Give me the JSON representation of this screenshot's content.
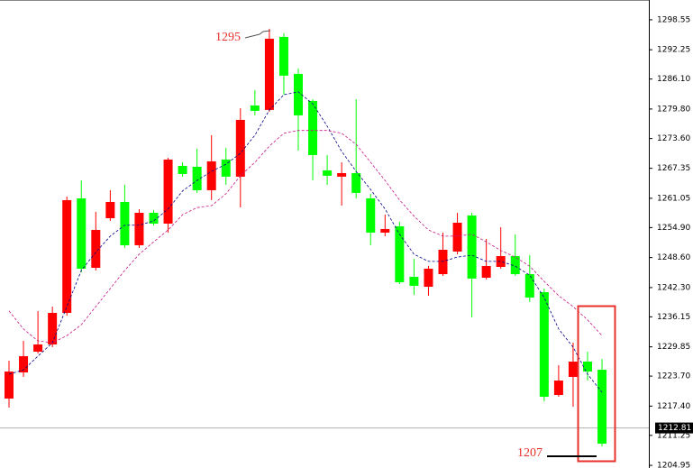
{
  "chart_data": {
    "type": "candlestick",
    "ylim": [
      1204.4,
      1302.7
    ],
    "yticks": [
      1298.55,
      1292.25,
      {
        "value": 1286.1,
        "label": "1286.10"
      },
      {
        "value": 1279.8,
        "label": "1279.80"
      },
      {
        "value": 1273.6,
        "label": "1273.60"
      },
      1267.35,
      1261.05,
      {
        "value": 1254.9,
        "label": "1254.90"
      },
      {
        "value": 1248.6,
        "label": "1248.60"
      },
      {
        "value": 1242.3,
        "label": "1242.30"
      },
      1236.15,
      1229.85,
      {
        "value": 1223.7,
        "label": "1223.70"
      },
      {
        "value": 1217.4,
        "label": "1217.40"
      },
      1211.25,
      1204.95
    ],
    "up_color": "#ff0000",
    "down_color": "#00ff00",
    "open": [
      1218.98,
      1224.47,
      1228.83,
      1230.35,
      1236.98,
      1261.04,
      1246.45,
      1256.87,
      1260.28,
      1251.19,
      1258.01,
      1255.73,
      1267.86,
      1267.67,
      1262.74,
      1269.19,
      1265.59,
      1280.55,
      1279.61,
      1294.95,
      1287.18,
      1281.5,
      1266.91,
      1265.59,
      1266.34,
      1261.04,
      1253.84,
      1255.17,
      1244.56,
      1242.47,
      1245.12,
      1249.86,
      1257.44,
      1244.37,
      1246.64,
      1248.91,
      1245.12,
      1241.33,
      1219.74,
      1223.53,
      1226.75,
      1225.04
    ],
    "high": [
      1226.94,
      1231.1,
      1237.36,
      1238.3,
      1261.42,
      1264.83,
      1258.2,
      1262.74,
      1263.88,
      1258.77,
      1258.58,
      1269.56,
      1268.62,
      1271.46,
      1274.3,
      1271.65,
      1279.98,
      1283.77,
      1296.66,
      1295.71,
      1288.32,
      1281.88,
      1270.13,
      1268.62,
      1281.88,
      1261.99,
      1257.63,
      1256.11,
      1248.34,
      1246.83,
      1253.84,
      1258.01,
      1258.01,
      1252.51,
      1254.98,
      1253.46,
      1249.1,
      1242.09,
      1225.99,
      1230.73,
      1228.83,
      1227.31
    ],
    "low": [
      1217.08,
      1223.53,
      1228.45,
      1229.78,
      1236.41,
      1245.5,
      1245.88,
      1256.3,
      1250.62,
      1250.62,
      1255.35,
      1253.84,
      1265.59,
      1262.18,
      1260.66,
      1263.88,
      1259.14,
      1278.47,
      1279.23,
      1282.83,
      1271.08,
      1264.83,
      1263.88,
      1259.52,
      1261.04,
      1251.19,
      1253.08,
      1243.04,
      1240.77,
      1240.58,
      1244.75,
      1249.29,
      1236.03,
      1243.99,
      1246.26,
      1244.75,
      1239.25,
      1218.41,
      1219.36,
      1217.27,
      1222.77,
      1208.94
    ],
    "close": [
      1224.66,
      1227.88,
      1230.35,
      1236.98,
      1260.66,
      1246.26,
      1254.41,
      1260.28,
      1251.19,
      1258.01,
      1255.73,
      1269.19,
      1266.15,
      1262.74,
      1268.81,
      1265.59,
      1277.52,
      1279.42,
      1294.57,
      1286.81,
      1278.47,
      1270.13,
      1265.78,
      1266.34,
      1262.18,
      1253.84,
      1254.6,
      1243.42,
      1242.66,
      1246.26,
      1250.24,
      1255.92,
      1244.18,
      1246.83,
      1248.91,
      1245.12,
      1240.2,
      1219.36,
      1222.77,
      1226.75,
      1224.66,
      1209.51
    ],
    "moving_averages": [
      {
        "color": "#00008b",
        "values": [
          1224.1,
          1225.0,
          1227.9,
          1230.7,
          1238.3,
          1245.9,
          1249.7,
          1253.1,
          1255.4,
          1255.4,
          1256.3,
          1258.8,
          1262.6,
          1264.8,
          1266.7,
          1268.2,
          1270.5,
          1274.3,
          1279.6,
          1282.8,
          1283.4,
          1280.9,
          1276.2,
          1270.9,
          1266.7,
          1262.9,
          1258.8,
          1253.5,
          1249.3,
          1247.8,
          1247.8,
          1248.7,
          1249.1,
          1247.8,
          1247.8,
          1246.8,
          1244.9,
          1240.2,
          1233.6,
          1229.8,
          1224.1,
          1220.3
        ]
      },
      {
        "color": "#c71585",
        "values": [
          1237.4,
          1233.6,
          1231.1,
          1230.7,
          1232.2,
          1234.5,
          1238.3,
          1242.1,
          1245.9,
          1249.3,
          1251.9,
          1254.4,
          1257.6,
          1259.1,
          1259.5,
          1262.0,
          1265.8,
          1268.6,
          1272.0,
          1274.7,
          1275.3,
          1275.3,
          1275.3,
          1274.7,
          1272.4,
          1268.6,
          1264.8,
          1260.7,
          1257.3,
          1254.4,
          1253.1,
          1253.1,
          1253.5,
          1251.9,
          1250.1,
          1248.7,
          1246.8,
          1243.6,
          1240.6,
          1238.3,
          1235.5,
          1232.2
        ]
      }
    ],
    "current_price": 1212.81,
    "annotations": [
      {
        "text": "1295"
      },
      {
        "text": "1207"
      }
    ]
  }
}
